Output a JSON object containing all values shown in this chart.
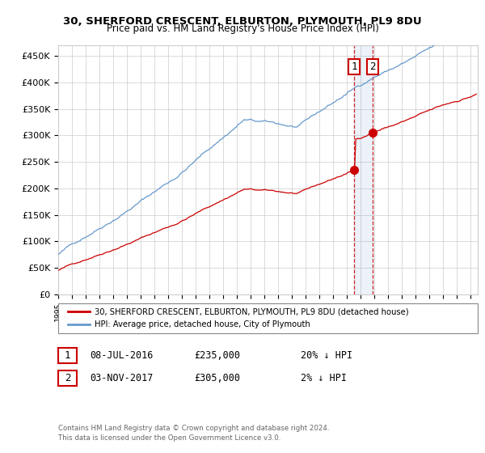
{
  "title1": "30, SHERFORD CRESCENT, ELBURTON, PLYMOUTH, PL9 8DU",
  "title2": "Price paid vs. HM Land Registry's House Price Index (HPI)",
  "ylabel_ticks": [
    "£0",
    "£50K",
    "£100K",
    "£150K",
    "£200K",
    "£250K",
    "£300K",
    "£350K",
    "£400K",
    "£450K"
  ],
  "ytick_values": [
    0,
    50000,
    100000,
    150000,
    200000,
    250000,
    300000,
    350000,
    400000,
    450000
  ],
  "ylim": [
    0,
    470000
  ],
  "xlim_start": 1995.0,
  "xlim_end": 2025.5,
  "legend_line1": "30, SHERFORD CRESCENT, ELBURTON, PLYMOUTH, PL9 8DU (detached house)",
  "legend_line2": "HPI: Average price, detached house, City of Plymouth",
  "sale1_label": "1",
  "sale1_date": "08-JUL-2016",
  "sale1_price": "£235,000",
  "sale1_hpi": "20% ↓ HPI",
  "sale1_x": 2016.52,
  "sale1_y": 235000,
  "sale2_label": "2",
  "sale2_date": "03-NOV-2017",
  "sale2_price": "£305,000",
  "sale2_hpi": "2% ↓ HPI",
  "sale2_x": 2017.84,
  "sale2_y": 305000,
  "red_color": "#cc0000",
  "blue_color": "#6699cc",
  "footer1": "Contains HM Land Registry data © Crown copyright and database right 2024.",
  "footer2": "This data is licensed under the Open Government Licence v3.0."
}
